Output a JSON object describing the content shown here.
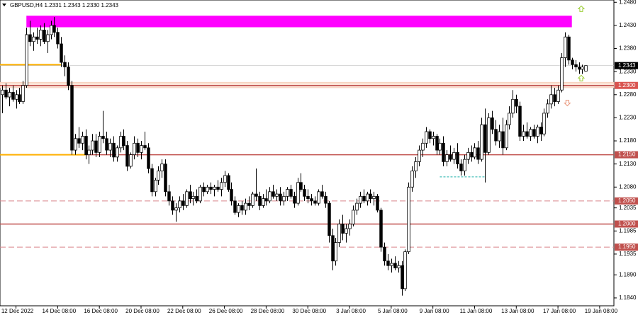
{
  "chart_data": {
    "type": "candlestick",
    "title": "GBPUSD,H4 1.2331 1.2343 1.2330 1.2343",
    "xlim": [
      -0.6,
      176.1
    ],
    "ylim": [
      1.1823,
      1.2485
    ],
    "xticks": [
      {
        "value": 4,
        "label": "12 Dec 2022"
      },
      {
        "value": 16,
        "label": "14 Dec 08:00"
      },
      {
        "value": 28,
        "label": "16 Dec 08:00"
      },
      {
        "value": 40,
        "label": "20 Dec 08:00"
      },
      {
        "value": 52,
        "label": "22 Dec 08:00"
      },
      {
        "value": 64,
        "label": "26 Dec 08:00"
      },
      {
        "value": 76,
        "label": "28 Dec 08:00"
      },
      {
        "value": 88,
        "label": "30 Dec 08:00"
      },
      {
        "value": 100,
        "label": "3 Jan 08:00"
      },
      {
        "value": 112,
        "label": "5 Jan 08:00"
      },
      {
        "value": 124,
        "label": "9 Jan 08:00"
      },
      {
        "value": 136,
        "label": "11 Jan 08:00"
      },
      {
        "value": 148,
        "label": "13 Jan 08:00"
      },
      {
        "value": 160,
        "label": "17 Jan 08:00"
      },
      {
        "value": 172,
        "label": "19 Jan 08:00"
      }
    ],
    "yticks": [
      {
        "value": 1.248,
        "label": "1.2480"
      },
      {
        "value": 1.243,
        "label": "1.2430"
      },
      {
        "value": 1.238,
        "label": "1.2380"
      },
      {
        "value": 1.233,
        "label": "1.2330"
      },
      {
        "value": 1.228,
        "label": "1.2280"
      },
      {
        "value": 1.223,
        "label": "1.2230"
      },
      {
        "value": 1.218,
        "label": "1.2180"
      },
      {
        "value": 1.213,
        "label": "1.2130"
      },
      {
        "value": 1.208,
        "label": "1.2080"
      },
      1.2035,
      1.1985,
      1.1935,
      {
        "value": 1.189,
        "label": "1.1890"
      },
      {
        "value": 1.184,
        "label": "1.1840"
      }
    ],
    "bull_color": "#ffffff",
    "bear_color": "#000000",
    "outline_color": "#000000",
    "candles": [
      [
        1.228,
        1.23,
        1.224,
        1.229
      ],
      [
        1.229,
        1.2305,
        1.227,
        1.2275
      ],
      [
        1.2275,
        1.2295,
        1.2255,
        1.2285
      ],
      [
        1.2285,
        1.23,
        1.2265,
        1.227
      ],
      [
        1.227,
        1.229,
        1.225,
        1.228
      ],
      [
        1.228,
        1.2295,
        1.226,
        1.2265
      ],
      [
        1.2265,
        1.231,
        1.226,
        1.23
      ],
      [
        1.23,
        1.2425,
        1.2295,
        1.241
      ],
      [
        1.241,
        1.244,
        1.2385,
        1.2395
      ],
      [
        1.2395,
        1.2415,
        1.2375,
        1.2405
      ],
      [
        1.2405,
        1.2425,
        1.239,
        1.24
      ],
      [
        1.24,
        1.243,
        1.2385,
        1.242
      ],
      [
        1.242,
        1.2435,
        1.239,
        1.2395
      ],
      [
        1.2395,
        1.242,
        1.237,
        1.241
      ],
      [
        1.241,
        1.244,
        1.24,
        1.243
      ],
      [
        1.243,
        1.2448,
        1.2405,
        1.2415
      ],
      [
        1.2415,
        1.2425,
        1.238,
        1.239
      ],
      [
        1.239,
        1.2405,
        1.234,
        1.235
      ],
      [
        1.235,
        1.2365,
        1.232,
        1.234
      ],
      [
        1.234,
        1.235,
        1.229,
        1.23
      ],
      [
        1.23,
        1.231,
        1.215,
        1.216
      ],
      [
        1.216,
        1.2195,
        1.215,
        1.2185
      ],
      [
        1.2185,
        1.221,
        1.2165,
        1.2175
      ],
      [
        1.2175,
        1.22,
        1.216,
        1.219
      ],
      [
        1.219,
        1.2205,
        1.214,
        1.215
      ],
      [
        1.215,
        1.217,
        1.213,
        1.216
      ],
      [
        1.216,
        1.2195,
        1.215,
        1.218
      ],
      [
        1.218,
        1.2195,
        1.2145,
        1.2155
      ],
      [
        1.2155,
        1.22,
        1.2145,
        1.219
      ],
      [
        1.219,
        1.2245,
        1.2175,
        1.2185
      ],
      [
        1.2185,
        1.22,
        1.215,
        1.216
      ],
      [
        1.216,
        1.2185,
        1.2145,
        1.2175
      ],
      [
        1.2175,
        1.219,
        1.2135,
        1.2145
      ],
      [
        1.2145,
        1.217,
        1.2135,
        1.2165
      ],
      [
        1.2165,
        1.22,
        1.2155,
        1.219
      ],
      [
        1.219,
        1.2205,
        1.216,
        1.217
      ],
      [
        1.217,
        1.218,
        1.2115,
        1.2125
      ],
      [
        1.2125,
        1.2155,
        1.212,
        1.215
      ],
      [
        1.215,
        1.219,
        1.214,
        1.2175
      ],
      [
        1.2175,
        1.2185,
        1.2145,
        1.2155
      ],
      [
        1.2155,
        1.218,
        1.214,
        1.217
      ],
      [
        1.217,
        1.22,
        1.216,
        1.2165
      ],
      [
        1.2165,
        1.2175,
        1.211,
        1.212
      ],
      [
        1.212,
        1.213,
        1.206,
        1.207
      ],
      [
        1.207,
        1.21,
        1.206,
        1.2095
      ],
      [
        1.2095,
        1.2125,
        1.2085,
        1.2115
      ],
      [
        1.2115,
        1.214,
        1.21,
        1.213
      ],
      [
        1.213,
        1.214,
        1.206,
        1.207
      ],
      [
        1.207,
        1.2085,
        1.204,
        1.205
      ],
      [
        1.205,
        1.206,
        1.202,
        1.203
      ],
      [
        1.203,
        1.2045,
        1.2005,
        1.2035
      ],
      [
        1.2035,
        1.206,
        1.2025,
        1.205
      ],
      [
        1.205,
        1.2065,
        1.203,
        1.204
      ],
      [
        1.204,
        1.2075,
        1.2035,
        1.207
      ],
      [
        1.207,
        1.2085,
        1.2045,
        1.2055
      ],
      [
        1.2055,
        1.207,
        1.204,
        1.206
      ],
      [
        1.206,
        1.2075,
        1.2045,
        1.205
      ],
      [
        1.205,
        1.2085,
        1.2045,
        1.208
      ],
      [
        1.208,
        1.209,
        1.206,
        1.207
      ],
      [
        1.207,
        1.2085,
        1.2065,
        1.208
      ],
      [
        1.208,
        1.209,
        1.2065,
        1.2075
      ],
      [
        1.2075,
        1.2085,
        1.206,
        1.208
      ],
      [
        1.208,
        1.2095,
        1.207,
        1.2075
      ],
      [
        1.2075,
        1.21,
        1.206,
        1.209
      ],
      [
        1.209,
        1.2115,
        1.208,
        1.2105
      ],
      [
        1.2105,
        1.211,
        1.207,
        1.2075
      ],
      [
        1.2075,
        1.209,
        1.204,
        1.205
      ],
      [
        1.205,
        1.206,
        1.202,
        1.2025
      ],
      [
        1.2025,
        1.2045,
        1.2015,
        1.204
      ],
      [
        1.204,
        1.205,
        1.202,
        1.203
      ],
      [
        1.203,
        1.2055,
        1.202,
        1.2045
      ],
      [
        1.2045,
        1.206,
        1.203,
        1.204
      ],
      [
        1.204,
        1.207,
        1.2035,
        1.2065
      ],
      [
        1.2065,
        1.212,
        1.205,
        1.206
      ],
      [
        1.206,
        1.207,
        1.203,
        1.204
      ],
      [
        1.204,
        1.2065,
        1.2035,
        1.2055
      ],
      [
        1.2055,
        1.2075,
        1.204,
        1.205
      ],
      [
        1.205,
        1.208,
        1.2045,
        1.207
      ],
      [
        1.207,
        1.2085,
        1.2055,
        1.206
      ],
      [
        1.206,
        1.2075,
        1.205,
        1.2065
      ],
      [
        1.2065,
        1.208,
        1.204,
        1.205
      ],
      [
        1.205,
        1.207,
        1.204,
        1.206
      ],
      [
        1.206,
        1.208,
        1.205,
        1.2075
      ],
      [
        1.2075,
        1.2085,
        1.2055,
        1.206
      ],
      [
        1.206,
        1.207,
        1.2035,
        1.2045
      ],
      [
        1.2045,
        1.21,
        1.204,
        1.209
      ],
      [
        1.209,
        1.211,
        1.207,
        1.2075
      ],
      [
        1.2075,
        1.2085,
        1.205,
        1.206
      ],
      [
        1.206,
        1.2075,
        1.2045,
        1.2055
      ],
      [
        1.2055,
        1.2065,
        1.204,
        1.205
      ],
      [
        1.205,
        1.206,
        1.204,
        1.2045
      ],
      [
        1.2045,
        1.2075,
        1.204,
        1.207
      ],
      [
        1.207,
        1.2085,
        1.2055,
        1.206
      ],
      [
        1.206,
        1.207,
        1.2035,
        1.2045
      ],
      [
        1.2045,
        1.205,
        1.196,
        1.1975
      ],
      [
        1.1975,
        1.199,
        1.19,
        1.192
      ],
      [
        1.192,
        1.197,
        1.191,
        1.196
      ],
      [
        1.196,
        1.201,
        1.195,
        1.2
      ],
      [
        1.2,
        1.202,
        1.1965,
        1.198
      ],
      [
        1.198,
        1.2,
        1.196,
        1.199
      ],
      [
        1.199,
        1.201,
        1.1975,
        1.2
      ],
      [
        1.2,
        1.204,
        1.1995,
        1.203
      ],
      [
        1.203,
        1.2055,
        1.202,
        1.2045
      ],
      [
        1.2045,
        1.207,
        1.2035,
        1.206
      ],
      [
        1.206,
        1.2075,
        1.2045,
        1.205
      ],
      [
        1.205,
        1.207,
        1.204,
        1.2065
      ],
      [
        1.2065,
        1.2075,
        1.2045,
        1.2055
      ],
      [
        1.2055,
        1.207,
        1.204,
        1.206
      ],
      [
        1.206,
        1.2065,
        1.2025,
        1.203
      ],
      [
        1.203,
        1.2035,
        1.194,
        1.195
      ],
      [
        1.195,
        1.196,
        1.191,
        1.192
      ],
      [
        1.192,
        1.1935,
        1.19,
        1.191
      ],
      [
        1.191,
        1.1925,
        1.1895,
        1.1915
      ],
      [
        1.1915,
        1.193,
        1.19,
        1.1905
      ],
      [
        1.1905,
        1.192,
        1.1895,
        1.191
      ],
      [
        1.191,
        1.192,
        1.1845,
        1.186
      ],
      [
        1.186,
        1.1945,
        1.1855,
        1.194
      ],
      [
        1.194,
        1.209,
        1.1935,
        1.208
      ],
      [
        1.208,
        1.2125,
        1.207,
        1.2115
      ],
      [
        1.2115,
        1.2145,
        1.21,
        1.2135
      ],
      [
        1.2135,
        1.217,
        1.2125,
        1.216
      ],
      [
        1.216,
        1.2185,
        1.2145,
        1.2175
      ],
      [
        1.2175,
        1.221,
        1.2165,
        1.22
      ],
      [
        1.22,
        1.2205,
        1.2175,
        1.2185
      ],
      [
        1.2185,
        1.22,
        1.217,
        1.219
      ],
      [
        1.219,
        1.2195,
        1.215,
        1.216
      ],
      [
        1.216,
        1.2185,
        1.215,
        1.2175
      ],
      [
        1.2175,
        1.219,
        1.2125,
        1.2135
      ],
      [
        1.2135,
        1.216,
        1.2125,
        1.215
      ],
      [
        1.215,
        1.217,
        1.2135,
        1.214
      ],
      [
        1.214,
        1.2165,
        1.213,
        1.2155
      ],
      [
        1.2155,
        1.2175,
        1.212,
        1.213
      ],
      [
        1.213,
        1.214,
        1.2105,
        1.2115
      ],
      [
        1.2115,
        1.215,
        1.2105,
        1.214
      ],
      [
        1.214,
        1.2165,
        1.213,
        1.2155
      ],
      [
        1.2155,
        1.217,
        1.2135,
        1.2145
      ],
      [
        1.2145,
        1.2175,
        1.214,
        1.2165
      ],
      [
        1.2165,
        1.218,
        1.213,
        1.214
      ],
      [
        1.214,
        1.223,
        1.2135,
        1.2215
      ],
      [
        1.2215,
        1.225,
        1.209,
        1.2155
      ],
      [
        1.2155,
        1.224,
        1.215,
        1.223
      ],
      [
        1.223,
        1.2245,
        1.2195,
        1.2205
      ],
      [
        1.2205,
        1.2225,
        1.217,
        1.218
      ],
      [
        1.218,
        1.2215,
        1.2165,
        1.22
      ],
      [
        1.22,
        1.223,
        1.215,
        1.2165
      ],
      [
        1.2165,
        1.2225,
        1.216,
        1.2215
      ],
      [
        1.2215,
        1.2255,
        1.2205,
        1.224
      ],
      [
        1.224,
        1.229,
        1.223,
        1.227
      ],
      [
        1.227,
        1.228,
        1.224,
        1.2255
      ],
      [
        1.2255,
        1.2265,
        1.218,
        1.219
      ],
      [
        1.219,
        1.2215,
        1.218,
        1.22
      ],
      [
        1.22,
        1.222,
        1.2185,
        1.219
      ],
      [
        1.219,
        1.221,
        1.218,
        1.2205
      ],
      [
        1.2205,
        1.2215,
        1.2185,
        1.219
      ],
      [
        1.219,
        1.2215,
        1.2175,
        1.221
      ],
      [
        1.221,
        1.222,
        1.218,
        1.2195
      ],
      [
        1.2195,
        1.225,
        1.219,
        1.224
      ],
      [
        1.224,
        1.227,
        1.223,
        1.226
      ],
      [
        1.226,
        1.23,
        1.225,
        1.228
      ],
      [
        1.228,
        1.2295,
        1.2255,
        1.2265
      ],
      [
        1.2265,
        1.23,
        1.226,
        1.229
      ],
      [
        1.229,
        1.237,
        1.2285,
        1.236
      ],
      [
        1.236,
        1.2415,
        1.234,
        1.2405
      ],
      [
        1.2405,
        1.241,
        1.2345,
        1.2355
      ],
      [
        1.2355,
        1.236,
        1.2335,
        1.2345
      ],
      [
        1.2345,
        1.2355,
        1.233,
        1.234
      ],
      [
        1.234,
        1.235,
        1.2325,
        1.2335
      ],
      [
        1.2335,
        1.2345,
        1.2325,
        1.234
      ],
      [
        1.2331,
        1.2343,
        1.233,
        1.2343
      ]
    ],
    "levels": [
      {
        "value": 1.23,
        "label": "1.2300",
        "style": "solid",
        "color": "#c0504d",
        "band": [
          1.2295,
          1.2307
        ]
      },
      {
        "value": 1.215,
        "label": "1.2150",
        "style": "solid",
        "color": "#c0504d"
      },
      {
        "value": 1.205,
        "label": "1.2050",
        "style": "dashed",
        "color": "#d9858a"
      },
      {
        "value": 1.2,
        "label": "1.2000",
        "style": "solid",
        "color": "#c0504d"
      },
      {
        "value": 1.195,
        "label": "1.1950",
        "style": "dashed",
        "color": "#d9858a"
      }
    ],
    "current_price": {
      "value": 1.2343,
      "label": "1.2343"
    },
    "zones": [
      {
        "x": [
          7,
          164
        ],
        "y": [
          1.2426,
          1.2451
        ],
        "color": "#ff00ff"
      }
    ],
    "segments": [
      {
        "x": [
          -0.6,
          17
        ],
        "y": 1.2345,
        "color": "#ffb000",
        "style": "solid"
      },
      {
        "x": [
          -0.6,
          24
        ],
        "y": 1.215,
        "color": "#ffb000",
        "style": "solid"
      },
      {
        "x": [
          126,
          139
        ],
        "y": 1.2102,
        "color": "#20b2aa",
        "style": "dashed"
      }
    ],
    "arrows": [
      {
        "x": 166.7,
        "y": 1.2466,
        "dir": "up",
        "color": "#9acd32"
      },
      {
        "x": 166.7,
        "y": 1.2316,
        "dir": "up",
        "color": "#9acd32"
      },
      {
        "x": 162.7,
        "y": 1.2262,
        "dir": "down",
        "color": "#e9967a"
      }
    ]
  }
}
